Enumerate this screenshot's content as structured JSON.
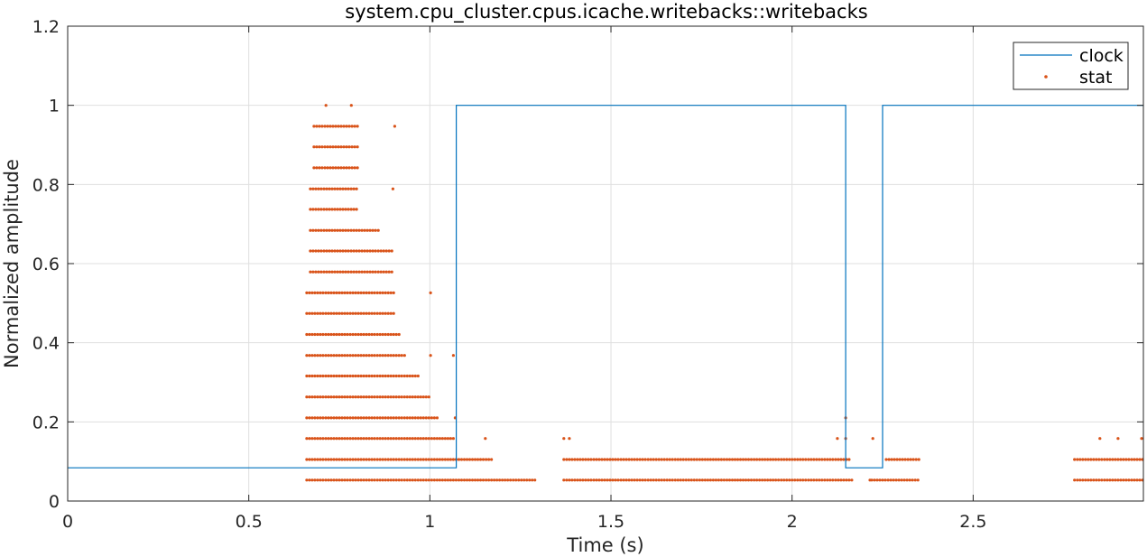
{
  "chart_data": {
    "type": "scatter",
    "title": "system.cpu_cluster.cpus.icache.writebacks::writebacks",
    "xlabel": "Time (s)",
    "ylabel": "Normalized amplitude",
    "xlim": [
      0,
      2.97
    ],
    "ylim": [
      0,
      1.2
    ],
    "xticks": [
      0,
      0.5,
      1,
      1.5,
      2,
      2.5
    ],
    "xtick_labels": [
      "0",
      "0.5",
      "1",
      "1.5",
      "2",
      "2.5"
    ],
    "yticks": [
      0,
      0.2,
      0.4,
      0.6,
      0.8,
      1,
      1.2
    ],
    "ytick_labels": [
      "0",
      "0.2",
      "0.4",
      "0.6",
      "0.8",
      "1",
      "1.2"
    ],
    "grid": true,
    "legend_position": "top-right",
    "colors": {
      "clock": "#0072BD",
      "stat": "#D95319"
    },
    "series": [
      {
        "name": "clock",
        "style": "step-line",
        "x": [
          0,
          1.073,
          1.073,
          2.148,
          2.148,
          2.25,
          2.25,
          2.97
        ],
        "y": [
          0.084,
          0.084,
          1,
          1,
          0.084,
          0.084,
          1,
          1
        ]
      },
      {
        "name": "stat",
        "style": "dots",
        "clusters": [
          {
            "x_start": 0.66,
            "x_end": 1.29,
            "y": 0.053
          },
          {
            "x_start": 1.37,
            "x_end": 2.17,
            "y": 0.053
          },
          {
            "x_start": 2.22,
            "x_end": 2.35,
            "y": 0.053
          },
          {
            "x_start": 2.78,
            "x_end": 2.97,
            "y": 0.053
          },
          {
            "x_start": 0.66,
            "x_end": 1.17,
            "y": 0.105
          },
          {
            "x_start": 1.37,
            "x_end": 2.16,
            "y": 0.105
          },
          {
            "x_start": 2.26,
            "x_end": 2.35,
            "y": 0.105
          },
          {
            "x_start": 2.78,
            "x_end": 2.97,
            "y": 0.105
          },
          {
            "x_start": 0.66,
            "x_end": 1.07,
            "y": 0.158
          },
          {
            "x_start": 0.66,
            "x_end": 1.02,
            "y": 0.21
          },
          {
            "x_start": 0.66,
            "x_end": 1.0,
            "y": 0.263
          },
          {
            "x_start": 0.66,
            "x_end": 0.97,
            "y": 0.316
          },
          {
            "x_start": 0.66,
            "x_end": 0.93,
            "y": 0.368
          },
          {
            "x_start": 0.66,
            "x_end": 0.92,
            "y": 0.421
          },
          {
            "x_start": 0.66,
            "x_end": 0.9,
            "y": 0.474
          },
          {
            "x_start": 0.66,
            "x_end": 0.9,
            "y": 0.526
          },
          {
            "x_start": 0.67,
            "x_end": 0.9,
            "y": 0.579
          },
          {
            "x_start": 0.67,
            "x_end": 0.9,
            "y": 0.632
          },
          {
            "x_start": 0.67,
            "x_end": 0.86,
            "y": 0.684
          },
          {
            "x_start": 0.67,
            "x_end": 0.8,
            "y": 0.737
          },
          {
            "x_start": 0.67,
            "x_end": 0.8,
            "y": 0.789
          },
          {
            "x_start": 0.68,
            "x_end": 0.8,
            "y": 0.842
          },
          {
            "x_start": 0.68,
            "x_end": 0.8,
            "y": 0.895
          },
          {
            "x_start": 0.68,
            "x_end": 0.8,
            "y": 0.947
          }
        ],
        "points": [
          [
            0.713,
            1.0
          ],
          [
            0.783,
            1.0
          ],
          [
            0.903,
            0.947
          ],
          [
            0.898,
            0.789
          ],
          [
            1.002,
            0.526
          ],
          [
            1.002,
            0.368
          ],
          [
            1.065,
            0.368
          ],
          [
            1.07,
            0.21
          ],
          [
            1.153,
            0.158
          ],
          [
            1.37,
            0.158
          ],
          [
            1.385,
            0.158
          ],
          [
            2.148,
            0.21
          ],
          [
            2.148,
            0.158
          ],
          [
            2.223,
            0.158
          ],
          [
            2.85,
            0.158
          ],
          [
            2.9,
            0.158
          ],
          [
            2.965,
            0.158
          ],
          [
            2.125,
            0.158
          ],
          [
            2.215,
            0.053
          ]
        ]
      }
    ]
  }
}
